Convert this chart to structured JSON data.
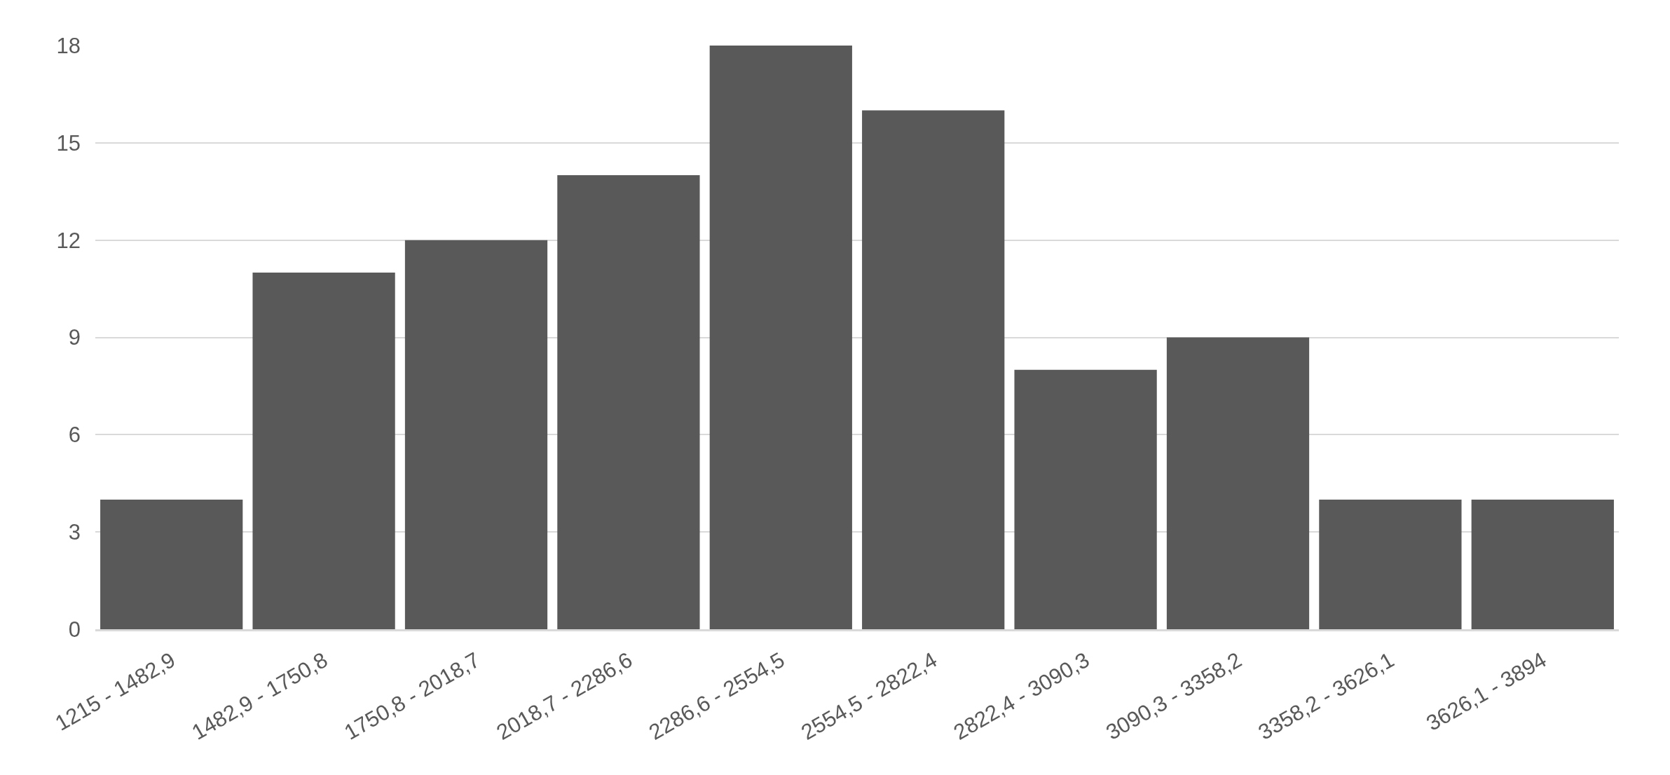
{
  "chart_data": {
    "type": "bar",
    "categories": [
      "1215 - 1482,9",
      "1482,9 - 1750,8",
      "1750,8 - 2018,7",
      "2018,7 - 2286,6",
      "2286,6 - 2554,5",
      "2554,5 - 2822,4",
      "2822,4 - 3090,3",
      "3090,3 - 3358,2",
      "3358,2 - 3626,1",
      "3626,1 - 3894"
    ],
    "values": [
      4,
      11,
      12,
      14,
      18,
      16,
      8,
      9,
      4,
      4
    ],
    "color": "#595959",
    "ylim": [
      0,
      18
    ],
    "yticks": [
      0,
      3,
      6,
      9,
      12,
      15,
      18
    ],
    "grid": "y"
  }
}
